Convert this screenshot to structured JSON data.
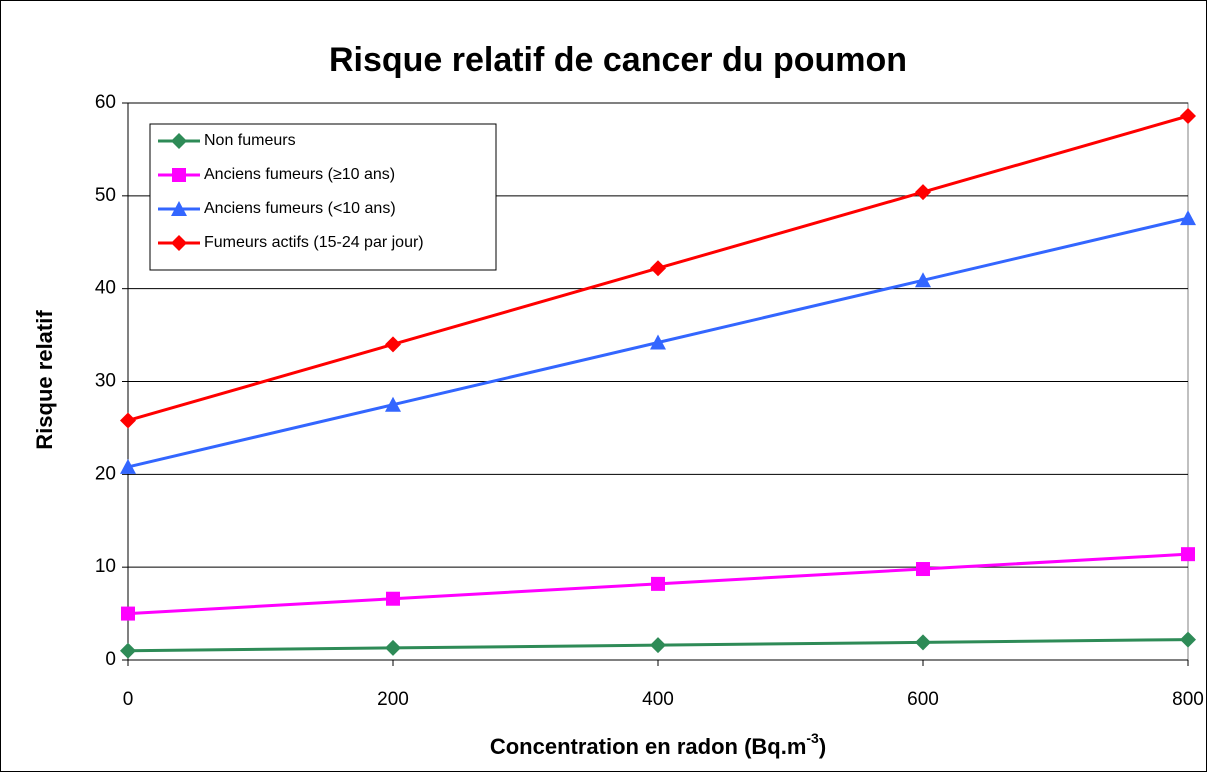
{
  "chart_data": {
    "type": "line",
    "title": "Risque relatif de cancer du poumon",
    "x_label": {
      "text": "Concentration en radon (Bq.m",
      "superscript": "-3",
      "suffix": ")"
    },
    "y_label": "Risque relatif",
    "x": [
      0,
      200,
      400,
      600,
      800
    ],
    "xlim": [
      0,
      800
    ],
    "xticks": [
      0,
      200,
      400,
      600,
      800
    ],
    "ylim": [
      0,
      60
    ],
    "yticks": [
      0,
      10,
      20,
      30,
      40,
      50,
      60
    ],
    "grid": true,
    "legend": "top-left",
    "series": [
      {
        "name": "Non fumeurs",
        "color": "#2e8b57",
        "marker": "diamond",
        "values": [
          1.0,
          1.3,
          1.6,
          1.9,
          2.2
        ]
      },
      {
        "name": "Anciens fumeurs (≥10 ans)",
        "color": "#ff00ff",
        "marker": "square",
        "values": [
          5.0,
          6.6,
          8.2,
          9.8,
          11.4
        ]
      },
      {
        "name": "Anciens fumeurs (<10 ans)",
        "color": "#3366ff",
        "marker": "triangle",
        "values": [
          20.8,
          27.5,
          34.2,
          40.9,
          47.6
        ]
      },
      {
        "name": "Fumeurs actifs (15-24 par jour)",
        "color": "#ff0000",
        "marker": "diamond",
        "values": [
          25.8,
          34.0,
          42.2,
          50.4,
          58.6
        ]
      }
    ]
  }
}
